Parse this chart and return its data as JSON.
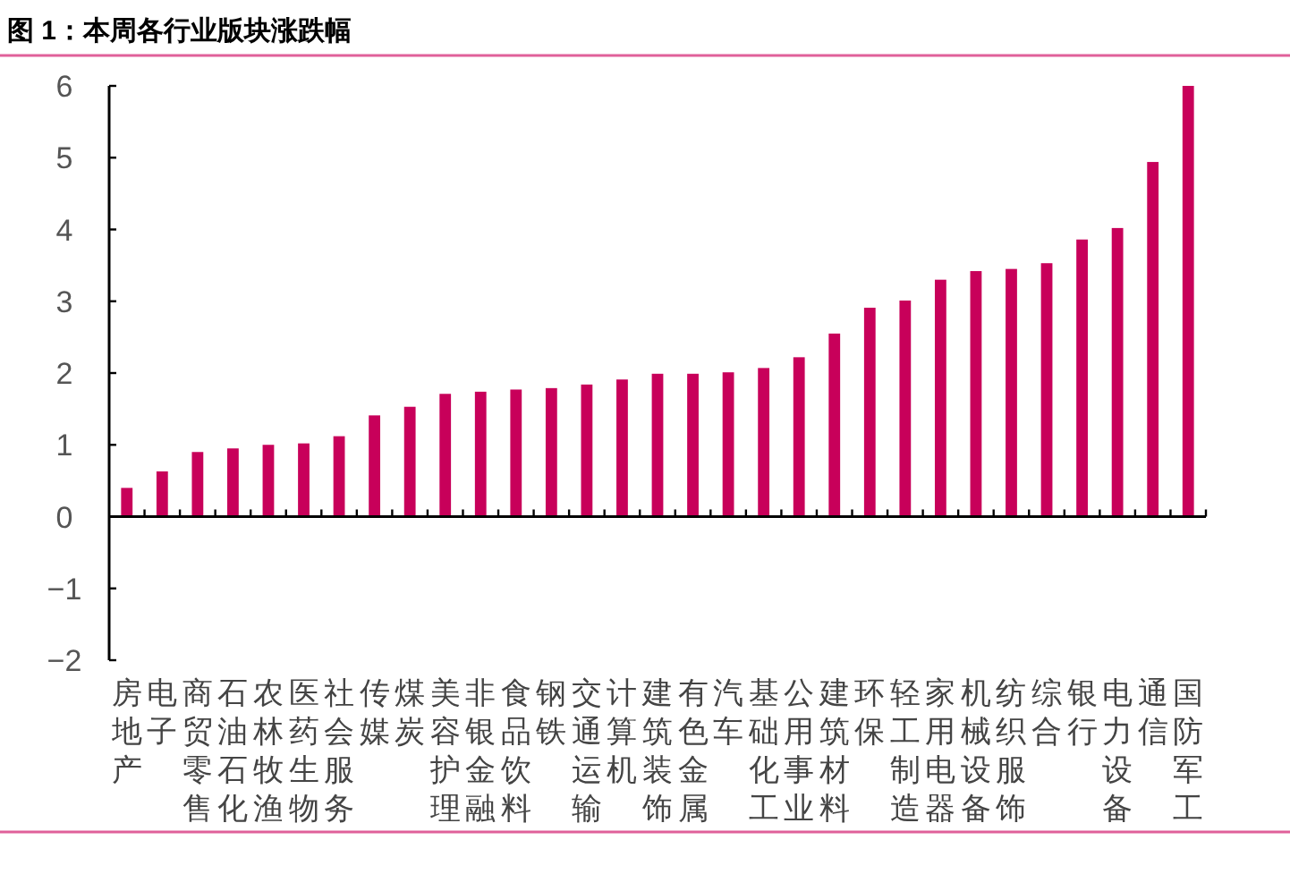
{
  "chart_data": {
    "type": "bar",
    "title": "图 1：本周各行业版块涨跌幅",
    "categories": [
      "房地产",
      "电子",
      "商贸零售",
      "石油石化",
      "农林牧渔",
      "医药生物",
      "社会服务",
      "传媒",
      "煤炭",
      "美容护理",
      "非银金融",
      "食品饮料",
      "钢铁",
      "交通运输",
      "计算机",
      "建筑装饰",
      "有色金属",
      "汽车",
      "基础化工",
      "公用事业",
      "建筑材料",
      "环保",
      "轻工制造",
      "家用电器",
      "机械设备",
      "纺织服饰",
      "综合",
      "银行",
      "电力设备",
      "通信",
      "国防军工"
    ],
    "values": [
      0.4,
      0.63,
      0.9,
      0.95,
      1.0,
      1.02,
      1.12,
      1.41,
      1.53,
      1.71,
      1.74,
      1.77,
      1.79,
      1.84,
      1.91,
      1.99,
      1.99,
      2.01,
      2.07,
      2.22,
      2.55,
      2.91,
      3.01,
      3.3,
      3.42,
      3.45,
      3.53,
      3.86,
      4.02,
      4.94,
      6.0
    ],
    "color": "#c8005a",
    "ylim": [
      -2,
      6
    ],
    "yticks": [
      {
        "value": -2,
        "label": "−2"
      },
      {
        "value": -1,
        "label": "−1"
      },
      0,
      1,
      2,
      3,
      4,
      5,
      6
    ]
  }
}
